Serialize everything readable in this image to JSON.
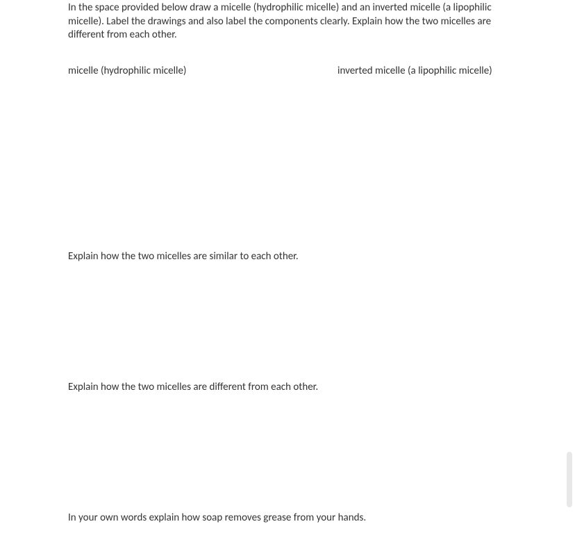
{
  "instruction": "In the space provided below draw a micelle (hydrophilic micelle) and an inverted micelle (a lipophilic micelle). Label the drawings and also label the components clearly. Explain how the two micelles are different from each other.",
  "labels": {
    "left": "micelle (hydrophilic micelle)",
    "right": "inverted micelle (a lipophilic micelle)"
  },
  "questions": {
    "similar": "Explain how the two micelles are similar to each other.",
    "different": "Explain how the two micelles are different from each other.",
    "soap": "In your own words explain how soap removes grease from your hands."
  },
  "colors": {
    "background": "#ffffff",
    "text": "#333333",
    "scrollbar": "#e8e8e8"
  },
  "typography": {
    "font_family": "Calibri, Arial, sans-serif",
    "body_fontsize": 15,
    "line_height": 1.3
  }
}
